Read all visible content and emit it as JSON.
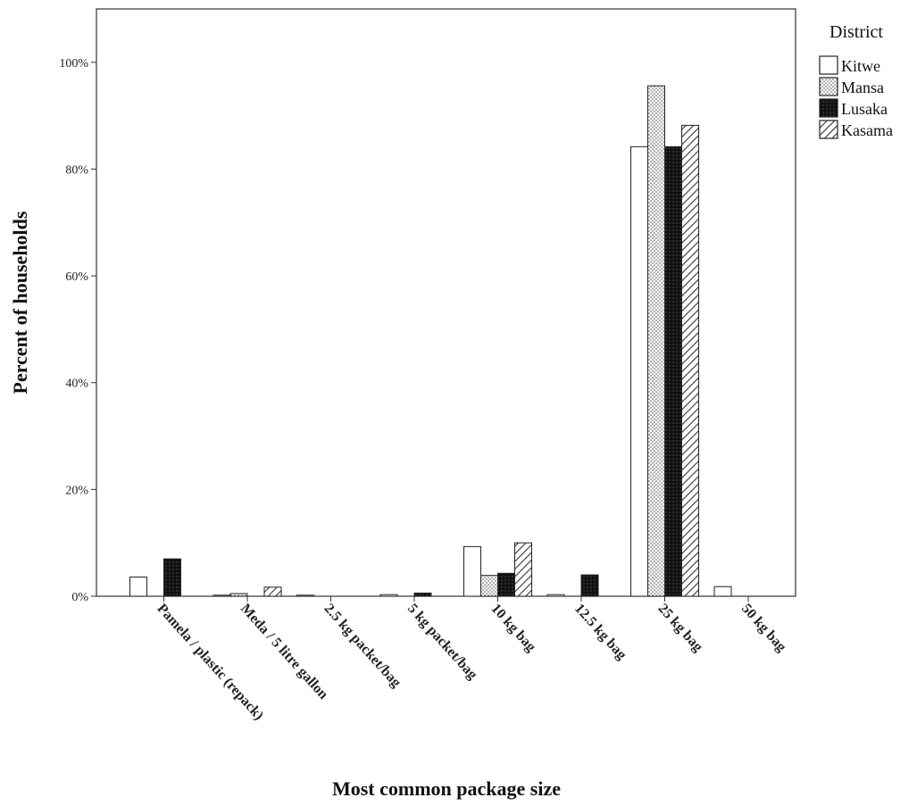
{
  "chart_data": {
    "type": "bar",
    "title": "",
    "xlabel": "Most common package size",
    "ylabel": "Percent of households",
    "ylim": [
      0,
      110
    ],
    "yticks": [
      "0%",
      "20%",
      "40%",
      "60%",
      "80%",
      "100%"
    ],
    "ytick_values": [
      0,
      20,
      40,
      60,
      80,
      100
    ],
    "grid": false,
    "legend_title": "District",
    "legend_position": "top-right, outside plot",
    "categories": [
      "Pamela / plastic (repack)",
      "Meda / 5 litre gallon",
      "2.5 kg packet/bag",
      "5 kg packet/bag",
      "10 kg bag",
      "12.5 kg bag",
      "25 kg bag",
      "50 kg bag"
    ],
    "series": [
      {
        "name": "Kitwe",
        "pattern": "white",
        "values": [
          3.6,
          0.2,
          0.2,
          0.3,
          9.3,
          0.3,
          84.2,
          1.8
        ]
      },
      {
        "name": "Mansa",
        "pattern": "dotted",
        "values": [
          0.0,
          0.5,
          0.0,
          0.0,
          3.9,
          0.0,
          95.6,
          0.0
        ]
      },
      {
        "name": "Lusaka",
        "pattern": "black",
        "values": [
          7.0,
          0.0,
          0.0,
          0.6,
          4.3,
          4.0,
          84.2,
          0.0
        ]
      },
      {
        "name": "Kasama",
        "pattern": "hatched",
        "values": [
          0.0,
          1.7,
          0.0,
          0.0,
          10.0,
          0.0,
          88.2,
          0.0
        ]
      }
    ]
  }
}
